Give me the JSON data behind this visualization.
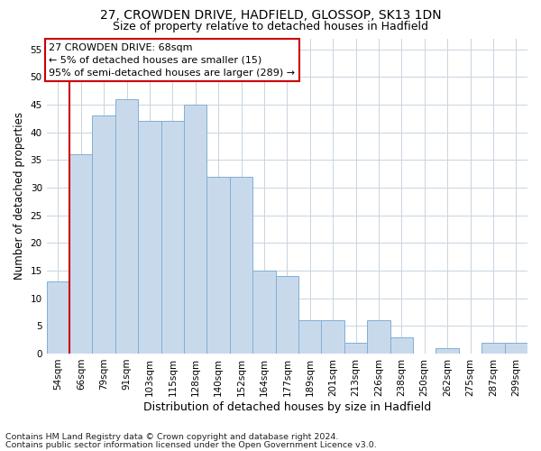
{
  "title1": "27, CROWDEN DRIVE, HADFIELD, GLOSSOP, SK13 1DN",
  "title2": "Size of property relative to detached houses in Hadfield",
  "xlabel": "Distribution of detached houses by size in Hadfield",
  "ylabel": "Number of detached properties",
  "footnote1": "Contains HM Land Registry data © Crown copyright and database right 2024.",
  "footnote2": "Contains public sector information licensed under the Open Government Licence v3.0.",
  "bin_labels": [
    "54sqm",
    "66sqm",
    "79sqm",
    "91sqm",
    "103sqm",
    "115sqm",
    "128sqm",
    "140sqm",
    "152sqm",
    "164sqm",
    "177sqm",
    "189sqm",
    "201sqm",
    "213sqm",
    "226sqm",
    "238sqm",
    "250sqm",
    "262sqm",
    "275sqm",
    "287sqm",
    "299sqm"
  ],
  "bar_values": [
    13,
    36,
    43,
    46,
    42,
    42,
    45,
    32,
    32,
    15,
    14,
    6,
    6,
    2,
    6,
    3,
    0,
    1,
    0,
    2,
    2
  ],
  "bar_color": "#c9d9ec",
  "bar_edge_color": "#7fafd4",
  "grid_color": "#c8d4e0",
  "annotation_line1": "27 CROWDEN DRIVE: 68sqm",
  "annotation_line2": "← 5% of detached houses are smaller (15)",
  "annotation_line3": "95% of semi-detached houses are larger (289) →",
  "annotation_box_color": "#ffffff",
  "annotation_box_edge_color": "#cc0000",
  "vline_color": "#cc0000",
  "vline_x": 0.5,
  "ylim": [
    0,
    57
  ],
  "yticks": [
    0,
    5,
    10,
    15,
    20,
    25,
    30,
    35,
    40,
    45,
    50,
    55
  ],
  "background_color": "#ffffff",
  "title1_fontsize": 10,
  "title2_fontsize": 9,
  "xlabel_fontsize": 9,
  "ylabel_fontsize": 8.5,
  "tick_fontsize": 7.5,
  "annotation_fontsize": 8,
  "footnote_fontsize": 6.8
}
